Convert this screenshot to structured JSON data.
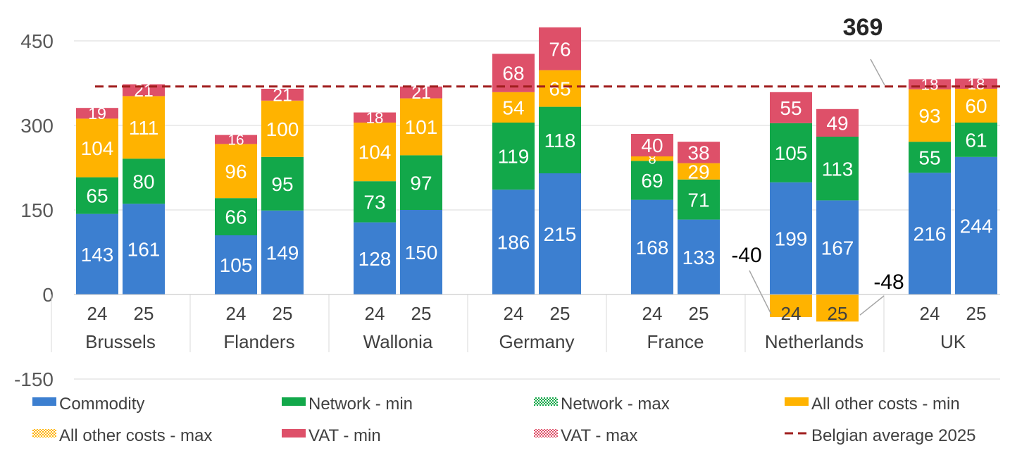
{
  "chart_data": {
    "type": "bar",
    "stacked": true,
    "ylim": [
      -150,
      450
    ],
    "yticks": [
      -150,
      0,
      150,
      300,
      450
    ],
    "grid": true,
    "legend_position": "bottom",
    "groups": [
      "Brussels",
      "Flanders",
      "Wallonia",
      "Germany",
      "France",
      "Netherlands",
      "UK"
    ],
    "bar_labels": [
      "24",
      "25"
    ],
    "series": [
      {
        "name": "Commodity",
        "color": "#3C7FD0",
        "values": [
          [
            143,
            161
          ],
          [
            105,
            149
          ],
          [
            128,
            150
          ],
          [
            186,
            215
          ],
          [
            168,
            133
          ],
          [
            199,
            167
          ],
          [
            216,
            244
          ]
        ]
      },
      {
        "name": "Network - min",
        "color": "#12A84A",
        "values": [
          [
            65,
            80
          ],
          [
            66,
            95
          ],
          [
            73,
            97
          ],
          [
            119,
            118
          ],
          [
            69,
            71
          ],
          [
            105,
            113
          ],
          [
            55,
            61
          ]
        ]
      },
      {
        "name": "Network - max",
        "color": "#12A84A",
        "pattern": "dotted",
        "values": [
          [
            0,
            0
          ],
          [
            0,
            0
          ],
          [
            0,
            0
          ],
          [
            0,
            0
          ],
          [
            0,
            0
          ],
          [
            0,
            0
          ],
          [
            0,
            0
          ]
        ]
      },
      {
        "name": "All other costs - min",
        "color": "#FFB300",
        "values": [
          [
            104,
            111
          ],
          [
            96,
            100
          ],
          [
            104,
            101
          ],
          [
            54,
            65
          ],
          [
            8,
            29
          ],
          [
            -40,
            -48
          ],
          [
            93,
            60
          ]
        ]
      },
      {
        "name": "All other costs - max",
        "color": "#FFB300",
        "pattern": "dotted",
        "values": [
          [
            0,
            0
          ],
          [
            0,
            0
          ],
          [
            0,
            0
          ],
          [
            0,
            0
          ],
          [
            0,
            0
          ],
          [
            0,
            0
          ],
          [
            0,
            0
          ]
        ]
      },
      {
        "name": "VAT - min",
        "color": "#DE5069",
        "values": [
          [
            19,
            21
          ],
          [
            16,
            21
          ],
          [
            18,
            21
          ],
          [
            68,
            76
          ],
          [
            40,
            38
          ],
          [
            55,
            49
          ],
          [
            18,
            18
          ]
        ]
      },
      {
        "name": "VAT - max",
        "color": "#DE5069",
        "pattern": "dotted",
        "values": [
          [
            0,
            0
          ],
          [
            0,
            0
          ],
          [
            0,
            0
          ],
          [
            0,
            0
          ],
          [
            0,
            0
          ],
          [
            0,
            0
          ],
          [
            0,
            0
          ]
        ]
      }
    ],
    "reference_line": {
      "name": "Belgian average 2025",
      "value": 369,
      "label": "369",
      "color": "#A01E1E"
    },
    "callouts": [
      {
        "group": 5,
        "bar": 0,
        "text": "-40"
      },
      {
        "group": 5,
        "bar": 1,
        "text": "-48"
      }
    ]
  }
}
